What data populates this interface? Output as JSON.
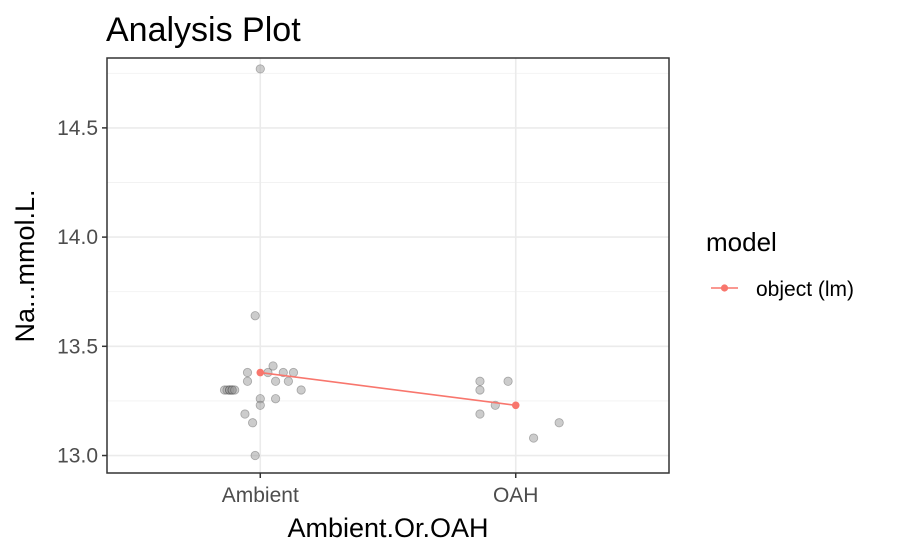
{
  "chart_data": {
    "type": "scatter",
    "title": "Analysis Plot",
    "xlabel": "Ambient.Or.OAH",
    "ylabel": "Na...mmol.L.",
    "categories": [
      "Ambient",
      "OAH"
    ],
    "yticks": [
      "13.0",
      "13.5",
      "14.0",
      "14.5"
    ],
    "ylim": [
      12.92,
      14.82
    ],
    "grid": true,
    "legend": {
      "title": "model",
      "position": "right",
      "entries": [
        {
          "label": "object (lm)",
          "color": "#F8766D"
        }
      ]
    },
    "points": [
      {
        "x": "Ambient",
        "jitter": 0.0,
        "y": 14.77
      },
      {
        "x": "Ambient",
        "jitter": -0.02,
        "y": 13.64
      },
      {
        "x": "Ambient",
        "jitter": 0.05,
        "y": 13.41
      },
      {
        "x": "Ambient",
        "jitter": -0.05,
        "y": 13.38
      },
      {
        "x": "Ambient",
        "jitter": 0.09,
        "y": 13.38
      },
      {
        "x": "Ambient",
        "jitter": 0.13,
        "y": 13.38
      },
      {
        "x": "Ambient",
        "jitter": 0.03,
        "y": 13.38
      },
      {
        "x": "Ambient",
        "jitter": -0.05,
        "y": 13.34
      },
      {
        "x": "Ambient",
        "jitter": 0.06,
        "y": 13.34
      },
      {
        "x": "Ambient",
        "jitter": 0.11,
        "y": 13.34
      },
      {
        "x": "Ambient",
        "jitter": -0.14,
        "y": 13.3
      },
      {
        "x": "Ambient",
        "jitter": -0.13,
        "y": 13.3
      },
      {
        "x": "Ambient",
        "jitter": -0.12,
        "y": 13.3
      },
      {
        "x": "Ambient",
        "jitter": -0.12,
        "y": 13.3
      },
      {
        "x": "Ambient",
        "jitter": -0.11,
        "y": 13.3
      },
      {
        "x": "Ambient",
        "jitter": -0.11,
        "y": 13.3
      },
      {
        "x": "Ambient",
        "jitter": -0.1,
        "y": 13.3
      },
      {
        "x": "Ambient",
        "jitter": 0.16,
        "y": 13.3
      },
      {
        "x": "Ambient",
        "jitter": 0.0,
        "y": 13.26
      },
      {
        "x": "Ambient",
        "jitter": 0.06,
        "y": 13.26
      },
      {
        "x": "Ambient",
        "jitter": 0.0,
        "y": 13.23
      },
      {
        "x": "Ambient",
        "jitter": -0.06,
        "y": 13.19
      },
      {
        "x": "Ambient",
        "jitter": -0.03,
        "y": 13.15
      },
      {
        "x": "Ambient",
        "jitter": -0.02,
        "y": 13.0
      },
      {
        "x": "OAH",
        "jitter": -0.14,
        "y": 13.34
      },
      {
        "x": "OAH",
        "jitter": -0.03,
        "y": 13.34
      },
      {
        "x": "OAH",
        "jitter": -0.14,
        "y": 13.3
      },
      {
        "x": "OAH",
        "jitter": -0.08,
        "y": 13.23
      },
      {
        "x": "OAH",
        "jitter": -0.14,
        "y": 13.19
      },
      {
        "x": "OAH",
        "jitter": 0.17,
        "y": 13.15
      },
      {
        "x": "OAH",
        "jitter": 0.07,
        "y": 13.08
      }
    ],
    "series": [
      {
        "name": "object (lm)",
        "color": "#F8766D",
        "values": [
          13.38,
          13.23
        ]
      }
    ]
  }
}
